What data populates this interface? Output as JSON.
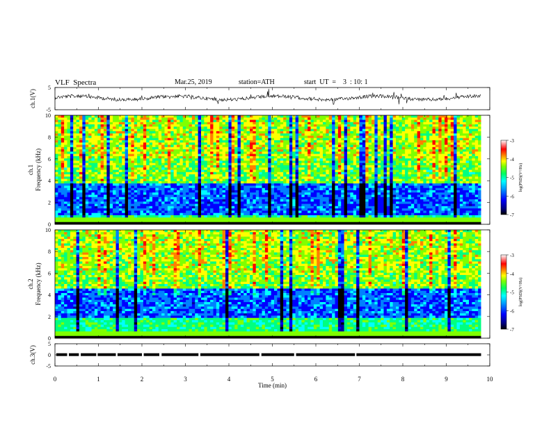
{
  "header": {
    "title": "VLF  Spectra",
    "date": "Mar.25, 2019",
    "station": "station=ATH",
    "start": "start  UT  =    3  : 10: 1"
  },
  "chart_data": [
    {
      "type": "line",
      "panel": "ch1-waveform",
      "ylabel": "ch.1(V)",
      "ylim": [
        -5,
        5
      ],
      "yticks": [
        "5",
        "-5"
      ],
      "xlim": [
        0,
        10
      ],
      "trace_level": 0.3,
      "trace_end_min": 9.8
    },
    {
      "type": "heatmap",
      "panel": "ch1-spectrogram",
      "ylabel_line1": "ch.1",
      "ylabel_line2": "Frequency  (kHz)",
      "ylim": [
        0,
        10
      ],
      "yticks": [
        "0",
        "2",
        "4",
        "6",
        "8",
        "10"
      ],
      "xlim": [
        0,
        9.8
      ],
      "colorbar": {
        "label": "log(PSD)(V²/Hz)",
        "ticks": [
          "-3",
          "-4",
          "-5",
          "-6",
          "-7"
        ],
        "range": [
          -7,
          -3
        ]
      }
    },
    {
      "type": "heatmap",
      "panel": "ch2-spectrogram",
      "ylabel_line1": "ch.2",
      "ylabel_line2": "Frequency  (kHz)",
      "ylim": [
        0,
        10
      ],
      "yticks": [
        "0",
        "2",
        "4",
        "6",
        "8",
        "10"
      ],
      "xlim": [
        0,
        9.8
      ],
      "colorbar": {
        "label": "log(PSD)(V²/Hz)",
        "ticks": [
          "-3",
          "-4",
          "-5",
          "-6",
          "-7"
        ],
        "range": [
          -7,
          -3
        ]
      }
    },
    {
      "type": "line",
      "panel": "ch3-waveform",
      "ylabel": "ch.3(V)",
      "ylim": [
        -5,
        5
      ],
      "yticks": [
        "5",
        "0",
        "-5"
      ],
      "xlim": [
        0,
        10
      ],
      "trace_level": 0.1,
      "trace_end_min": 9.8
    }
  ],
  "x_axis": {
    "label": "Time  (min)",
    "ticks": [
      "0",
      "1",
      "2",
      "3",
      "4",
      "5",
      "6",
      "7",
      "8",
      "9",
      "10"
    ],
    "range": [
      0,
      10
    ]
  },
  "colors": {
    "scale": [
      "#000000",
      "#0000a0",
      "#0000ff",
      "#0080ff",
      "#00ffff",
      "#00ff80",
      "#80ff00",
      "#ffff00",
      "#ff8000",
      "#ff0000",
      "#c00000",
      "#ffffff"
    ]
  }
}
